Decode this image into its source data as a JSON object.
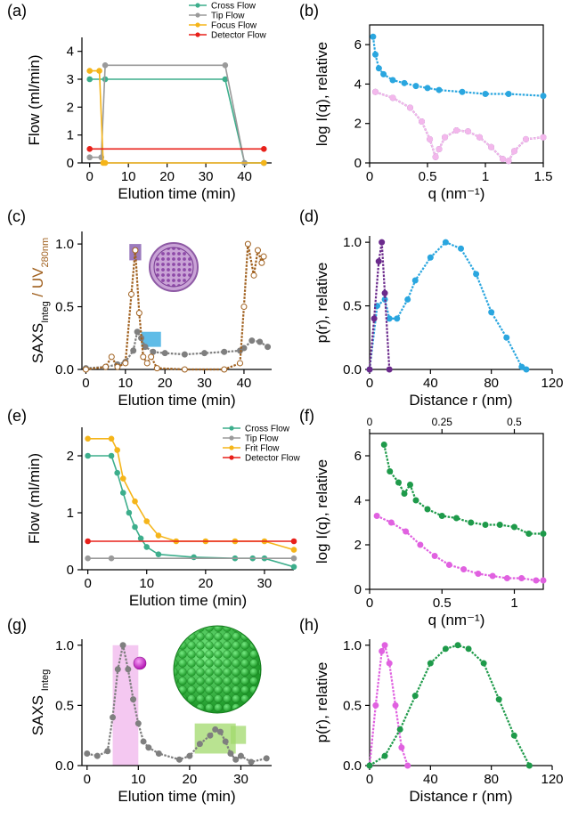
{
  "chart_data": [
    {
      "panel": "(a)",
      "type": "line",
      "xlabel": "Elution time (min)",
      "ylabel": "Flow (ml/min)",
      "xlim": [
        -2,
        47
      ],
      "ylim": [
        0,
        4.5
      ],
      "xticks": [
        0,
        10,
        20,
        30,
        40
      ],
      "yticks": [
        0,
        1,
        2,
        3,
        4
      ],
      "legend": "top-right",
      "series": [
        {
          "name": "Cross Flow",
          "color": "#3dae8c",
          "x": [
            0,
            4,
            35,
            40,
            45
          ],
          "y": [
            3,
            3,
            3,
            0,
            0
          ]
        },
        {
          "name": "Tip Flow",
          "color": "#9a9a9a",
          "x": [
            0,
            3,
            4,
            35,
            40,
            45
          ],
          "y": [
            0.2,
            0.2,
            3.5,
            3.5,
            0,
            0
          ]
        },
        {
          "name": "Focus Flow",
          "color": "#f5b51a",
          "x": [
            0,
            2.5,
            3.5,
            4,
            45
          ],
          "y": [
            3.3,
            3.3,
            0,
            0,
            0
          ]
        },
        {
          "name": "Detector Flow",
          "color": "#e8201a",
          "x": [
            0,
            45
          ],
          "y": [
            0.5,
            0.5
          ]
        }
      ]
    },
    {
      "panel": "(b)",
      "type": "scatter",
      "xlabel": "q (nm⁻¹)",
      "ylabel": "log I(q), relative",
      "xlim": [
        0,
        1.5
      ],
      "ylim": [
        0,
        7
      ],
      "xticks": [
        0,
        0.5,
        1,
        1.5
      ],
      "yticks": [
        0,
        2,
        4,
        6
      ],
      "series": [
        {
          "color": "#2aa6df",
          "x": [
            0.03,
            0.05,
            0.08,
            0.12,
            0.2,
            0.3,
            0.4,
            0.5,
            0.6,
            0.8,
            1.0,
            1.2,
            1.5
          ],
          "y": [
            6.4,
            5.5,
            4.8,
            4.5,
            4.2,
            4.05,
            3.9,
            3.8,
            3.7,
            3.6,
            3.5,
            3.5,
            3.4
          ]
        },
        {
          "color": "#6b2a8c",
          "x": [
            0.05,
            0.2,
            0.35,
            0.45,
            0.52,
            0.57,
            0.6,
            0.65,
            0.75,
            0.85,
            0.95,
            1.05,
            1.15,
            1.2,
            1.25,
            1.35,
            1.5
          ],
          "y": [
            3.6,
            3.3,
            2.8,
            2.1,
            1.2,
            0.3,
            0.7,
            1.3,
            1.65,
            1.6,
            1.3,
            0.8,
            0.2,
            0.1,
            0.6,
            1.2,
            1.3
          ]
        },
        {
          "color": "#f3b8ec",
          "x": [
            0.05,
            0.2,
            0.35,
            0.45,
            0.52,
            0.57,
            0.6,
            0.65,
            0.75,
            0.85,
            0.95,
            1.05,
            1.15,
            1.2,
            1.25,
            1.35,
            1.5
          ],
          "y": [
            3.6,
            3.3,
            2.8,
            2.1,
            1.2,
            0.3,
            0.7,
            1.3,
            1.65,
            1.6,
            1.3,
            0.8,
            0.2,
            0.1,
            0.6,
            1.2,
            1.3
          ]
        }
      ]
    },
    {
      "panel": "(c)",
      "type": "scatter",
      "xlabel": "Elution time (min)",
      "ylabel_parts": [
        "SAXS",
        "Integ",
        " / ",
        "UV",
        "280nm"
      ],
      "xlim": [
        -1,
        47
      ],
      "ylim": [
        0,
        1.1
      ],
      "xticks": [
        0,
        10,
        20,
        30,
        40
      ],
      "yticks": [
        0,
        0.5,
        1
      ],
      "ytick_labels": [
        "0.0",
        "0.5",
        "1.0"
      ],
      "series": [
        {
          "color": "#7f7f7f",
          "x": [
            0,
            5,
            8,
            10,
            12,
            13,
            14,
            15,
            17,
            20,
            25,
            30,
            35,
            39,
            40,
            42,
            44,
            46
          ],
          "y": [
            0.01,
            0.02,
            0.04,
            0.06,
            0.15,
            0.3,
            0.25,
            0.18,
            0.14,
            0.13,
            0.12,
            0.13,
            0.14,
            0.15,
            0.17,
            0.23,
            0.22,
            0.18
          ]
        },
        {
          "color": "#a0601e",
          "x": [
            0,
            5,
            6.5,
            8,
            10,
            11.5,
            12.5,
            13.5,
            14.5,
            15.5,
            16.5,
            18,
            25,
            35,
            39,
            40,
            41,
            42.5,
            43.5,
            44.5,
            45
          ],
          "y": [
            0,
            0.02,
            0.1,
            0.02,
            0.05,
            0.6,
            0.95,
            0.45,
            0.1,
            0.05,
            0.1,
            0.01,
            0,
            0,
            0.05,
            0.5,
            1.0,
            0.75,
            0.95,
            0.85,
            0.9
          ]
        }
      ],
      "highlights": [
        {
          "color": "#7b4fa8",
          "x": [
            11,
            14
          ],
          "y": [
            0.87,
            1.0
          ]
        },
        {
          "color": "#2aa6df",
          "x": [
            14,
            19
          ],
          "y": [
            0.18,
            0.3
          ]
        }
      ]
    },
    {
      "panel": "(d)",
      "type": "scatter",
      "xlabel": "Distance r (nm)",
      "ylabel": "p(r), relative",
      "xlim": [
        0,
        120
      ],
      "ylim": [
        0,
        1.05
      ],
      "xticks": [
        0,
        40,
        80,
        120
      ],
      "yticks": [
        0,
        0.5,
        1
      ],
      "ytick_labels": [
        "0.0",
        "0.5",
        "1.0"
      ],
      "series": [
        {
          "color": "#2aa6df",
          "x": [
            0,
            5,
            10,
            13,
            18,
            25,
            30,
            40,
            50,
            60,
            70,
            80,
            90,
            100,
            103
          ],
          "y": [
            0,
            0.5,
            0.55,
            0.4,
            0.4,
            0.55,
            0.7,
            0.88,
            1.0,
            0.95,
            0.75,
            0.45,
            0.25,
            0.02,
            0
          ]
        },
        {
          "color": "#6b2a8c",
          "x": [
            0,
            3,
            6,
            8,
            10,
            13
          ],
          "y": [
            0,
            0.4,
            0.85,
            1.0,
            0.6,
            0
          ]
        }
      ]
    },
    {
      "panel": "(e)",
      "type": "line",
      "xlabel": "Elution time (min)",
      "ylabel": "Flow (ml/min)",
      "xlim": [
        -1,
        35
      ],
      "ylim": [
        0,
        2.5
      ],
      "xticks": [
        0,
        10,
        20,
        30
      ],
      "yticks": [
        0,
        1,
        2
      ],
      "legend": "top-right",
      "series": [
        {
          "name": "Cross Flow",
          "color": "#3dae8c",
          "x": [
            0,
            4,
            5,
            6,
            7,
            8,
            9,
            10,
            12,
            18,
            25,
            28,
            30,
            35
          ],
          "y": [
            2.0,
            2.0,
            1.7,
            1.35,
            1.0,
            0.75,
            0.55,
            0.4,
            0.27,
            0.22,
            0.2,
            0.2,
            0.2,
            0.05
          ]
        },
        {
          "name": "Tip Flow",
          "color": "#9a9a9a",
          "x": [
            0,
            4,
            35
          ],
          "y": [
            0.2,
            0.2,
            0.2
          ]
        },
        {
          "name": "Frit Flow",
          "color": "#f5b51a",
          "x": [
            0,
            4,
            5,
            6,
            8,
            10,
            12,
            15,
            20,
            25,
            30,
            35
          ],
          "y": [
            2.3,
            2.3,
            2.1,
            1.6,
            1.2,
            0.85,
            0.6,
            0.5,
            0.5,
            0.5,
            0.5,
            0.35
          ]
        },
        {
          "name": "Detector Flow",
          "color": "#e8201a",
          "x": [
            0,
            35
          ],
          "y": [
            0.5,
            0.5
          ]
        }
      ]
    },
    {
      "panel": "(f)",
      "type": "scatter",
      "xlabel": "q (nm⁻¹)",
      "ylabel": "log I(q), relative",
      "xlim": [
        0,
        1.2
      ],
      "ylim": [
        0,
        7
      ],
      "xticks": [
        0,
        0.5,
        1
      ],
      "yticks": [
        0,
        2,
        4,
        6
      ],
      "xticks_top": [
        0,
        0.25,
        0.5
      ],
      "xlim_top": [
        0,
        0.6
      ],
      "series": [
        {
          "color": "#1e9a4a",
          "x_top": [
            0.05,
            0.07,
            0.1,
            0.12,
            0.14,
            0.16,
            0.2,
            0.25,
            0.3,
            0.35,
            0.4,
            0.45,
            0.5,
            0.55,
            0.6
          ],
          "y": [
            6.5,
            5.3,
            4.8,
            4.3,
            4.7,
            4.0,
            3.6,
            3.3,
            3.2,
            3.0,
            2.9,
            2.9,
            2.8,
            2.5,
            2.5
          ]
        },
        {
          "color": "#e061e0",
          "x": [
            0.05,
            0.15,
            0.25,
            0.35,
            0.45,
            0.55,
            0.65,
            0.75,
            0.85,
            0.95,
            1.05,
            1.15,
            1.2
          ],
          "y": [
            3.3,
            3.0,
            2.6,
            2.0,
            1.5,
            1.1,
            0.9,
            0.7,
            0.6,
            0.5,
            0.5,
            0.4,
            0.4
          ]
        }
      ]
    },
    {
      "panel": "(g)",
      "type": "scatter",
      "xlabel": "Elution time (min)",
      "ylabel_parts": [
        "SAXS ",
        "Integ"
      ],
      "xlim": [
        -1,
        36
      ],
      "ylim": [
        0,
        1.05
      ],
      "xticks": [
        0,
        10,
        20,
        30
      ],
      "yticks": [
        0,
        0.5,
        1
      ],
      "ytick_labels": [
        "0.0",
        "0.5",
        "1.0"
      ],
      "series": [
        {
          "color": "#7f7f7f",
          "x": [
            0,
            2,
            4,
            5,
            6,
            7,
            8,
            9,
            10,
            11,
            12,
            14,
            18,
            20,
            22,
            24,
            25,
            26,
            27,
            28,
            29,
            30,
            32,
            35
          ],
          "y": [
            0.1,
            0.08,
            0.12,
            0.4,
            0.8,
            1.0,
            0.8,
            0.55,
            0.35,
            0.2,
            0.15,
            0.1,
            0.05,
            0.08,
            0.18,
            0.25,
            0.3,
            0.28,
            0.2,
            0.1,
            0.05,
            0.08,
            0.03,
            0.06
          ]
        }
      ],
      "highlights": [
        {
          "color": "#f0b6ec",
          "x": [
            5,
            10
          ],
          "y": [
            0,
            1.0
          ]
        },
        {
          "color": "#a2d96c",
          "x": [
            21,
            29
          ],
          "y": [
            0.1,
            0.35
          ]
        },
        {
          "color": "#a2d96c",
          "x": [
            28,
            31
          ],
          "y": [
            0.18,
            0.33
          ]
        }
      ]
    },
    {
      "panel": "(h)",
      "type": "scatter",
      "xlabel": "Distance r (nm)",
      "ylabel": "p(r), relative",
      "xlim": [
        0,
        120
      ],
      "ylim": [
        0,
        1.05
      ],
      "xticks": [
        0,
        40,
        80,
        120
      ],
      "yticks": [
        0,
        0.5,
        1
      ],
      "ytick_labels": [
        "0.0",
        "0.5",
        "1.0"
      ],
      "series": [
        {
          "color": "#e061e0",
          "x": [
            0,
            4,
            8,
            10,
            13,
            17,
            21,
            25
          ],
          "y": [
            0,
            0.5,
            0.95,
            1.0,
            0.85,
            0.5,
            0.15,
            0
          ]
        },
        {
          "color": "#1e9a4a",
          "x": [
            0,
            10,
            20,
            30,
            40,
            50,
            58,
            65,
            75,
            85,
            95,
            105
          ],
          "y": [
            0,
            0.08,
            0.3,
            0.58,
            0.85,
            0.97,
            1.0,
            0.97,
            0.85,
            0.55,
            0.25,
            0
          ]
        }
      ]
    }
  ]
}
